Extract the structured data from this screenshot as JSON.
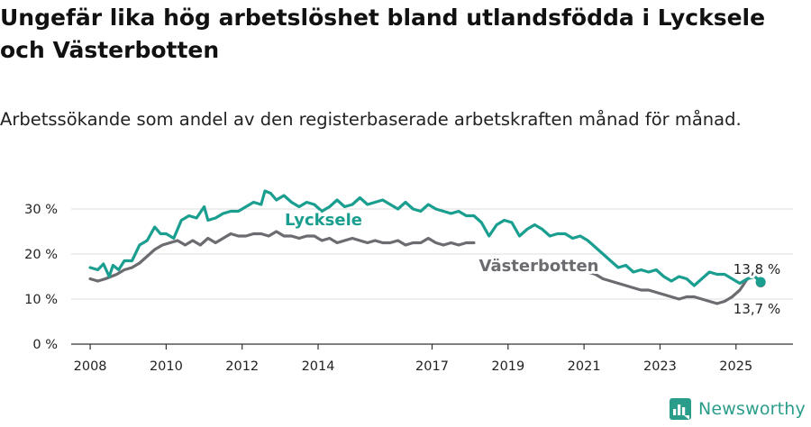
{
  "title": "Ungefär lika hög arbetslöshet bland utlandsfödda i Lycksele och Västerbotten",
  "subtitle": "Arbetssökande som andel av den registerbaserade arbetskraften månad för månad.",
  "brand": {
    "name": "Newsworthy",
    "icon": "newsworthy-logo-icon",
    "color": "#2a9d8a"
  },
  "chart_data": {
    "type": "line",
    "title": "",
    "xlabel": "",
    "ylabel": "",
    "xlim": [
      2007.5,
      2026.5
    ],
    "ylim": [
      0,
      30
    ],
    "yticks": [
      0,
      10,
      20,
      30
    ],
    "ytick_labels": [
      "0 %",
      "10 %",
      "20 %",
      "30 %"
    ],
    "xticks": [
      2008,
      2010,
      2012,
      2014,
      2017,
      2019,
      2021,
      2023,
      2025
    ],
    "xtick_labels": [
      "2008",
      "2010",
      "2012",
      "2014",
      "2017",
      "2019",
      "2021",
      "2023",
      "2025"
    ],
    "grid": "horizontal",
    "legend": "none",
    "series": [
      {
        "name": "Lycksele",
        "color": "#1a9e8f",
        "x": [
          2008.0,
          2008.2,
          2008.35,
          2008.5,
          2008.6,
          2008.75,
          2008.9,
          2009.1,
          2009.3,
          2009.5,
          2009.7,
          2009.85,
          2010.0,
          2010.2,
          2010.4,
          2010.6,
          2010.8,
          2011.0,
          2011.1,
          2011.3,
          2011.5,
          2011.7,
          2011.9,
          2012.1,
          2012.3,
          2012.5,
          2012.6,
          2012.75,
          2012.9,
          2013.1,
          2013.3,
          2013.5,
          2013.7,
          2013.9,
          2014.1,
          2014.3,
          2014.5,
          2014.7,
          2014.9,
          2015.1,
          2015.3,
          2015.5,
          2015.7,
          2015.9,
          2016.1,
          2016.3,
          2016.5,
          2016.7,
          2016.9,
          2017.1,
          2017.3,
          2017.5,
          2017.7,
          2017.9,
          2018.1,
          2018.3,
          2018.5,
          2018.7,
          2018.9,
          2019.1,
          2019.3,
          2019.5,
          2019.7,
          2019.9,
          2020.1,
          2020.3,
          2020.5,
          2020.7,
          2020.9,
          2021.1,
          2021.3,
          2021.5,
          2021.7,
          2021.9,
          2022.1,
          2022.3,
          2022.5,
          2022.7,
          2022.9,
          2023.1,
          2023.3,
          2023.5,
          2023.7,
          2023.9,
          2024.1,
          2024.3,
          2024.5,
          2024.7,
          2024.9,
          2025.1,
          2025.3,
          2025.5,
          2025.65
        ],
        "values": [
          17.0,
          16.5,
          17.8,
          15.0,
          17.5,
          16.5,
          18.5,
          18.5,
          22.0,
          23.0,
          26.0,
          24.5,
          24.5,
          23.5,
          27.5,
          28.5,
          28.0,
          30.5,
          27.5,
          28.0,
          29.0,
          29.5,
          29.5,
          30.5,
          31.5,
          31.0,
          34.0,
          33.5,
          32.0,
          33.0,
          31.5,
          30.5,
          31.5,
          31.0,
          29.5,
          30.5,
          32.0,
          30.5,
          31.0,
          32.5,
          31.0,
          31.5,
          32.0,
          31.0,
          30.0,
          31.5,
          30.0,
          29.5,
          31.0,
          30.0,
          29.5,
          29.0,
          29.5,
          28.5,
          28.5,
          27.0,
          24.0,
          26.5,
          27.5,
          27.0,
          24.0,
          25.5,
          26.5,
          25.5,
          24.0,
          24.5,
          24.5,
          23.5,
          24.0,
          23.0,
          21.5,
          20.0,
          18.5,
          17.0,
          17.5,
          16.0,
          16.5,
          16.0,
          16.5,
          15.0,
          14.0,
          15.0,
          14.5,
          13.0,
          14.5,
          16.0,
          15.5,
          15.5,
          14.5,
          13.5,
          14.5,
          15.0,
          13.8
        ],
        "end_label": "13,8 %"
      },
      {
        "name": "Västerbotten",
        "color": "#6b6b70",
        "x": [
          2008.0,
          2008.2,
          2008.4,
          2008.55,
          2008.7,
          2008.9,
          2009.1,
          2009.3,
          2009.5,
          2009.7,
          2009.9,
          2010.1,
          2010.3,
          2010.5,
          2010.7,
          2010.9,
          2011.1,
          2011.3,
          2011.5,
          2011.7,
          2011.9,
          2012.1,
          2012.3,
          2012.5,
          2012.7,
          2012.9,
          2013.1,
          2013.3,
          2013.5,
          2013.7,
          2013.9,
          2014.1,
          2014.3,
          2014.5,
          2014.7,
          2014.9,
          2015.1,
          2015.3,
          2015.5,
          2015.7,
          2015.9,
          2016.1,
          2016.3,
          2016.5,
          2016.7,
          2016.9,
          2017.1,
          2017.3,
          2017.5,
          2017.7,
          2017.9,
          2018.1,
          2020.9,
          2021.1,
          2021.3,
          2021.5,
          2021.7,
          2021.9,
          2022.1,
          2022.3,
          2022.5,
          2022.7,
          2022.9,
          2023.1,
          2023.3,
          2023.5,
          2023.7,
          2023.9,
          2024.1,
          2024.3,
          2024.5,
          2024.7,
          2024.9,
          2025.1,
          2025.3,
          2025.5,
          2025.65
        ],
        "values": [
          14.5,
          14.0,
          14.5,
          15.0,
          15.5,
          16.5,
          17.0,
          18.0,
          19.5,
          21.0,
          22.0,
          22.5,
          23.0,
          22.0,
          23.0,
          22.0,
          23.5,
          22.5,
          23.5,
          24.5,
          24.0,
          24.0,
          24.5,
          24.5,
          24.0,
          25.0,
          24.0,
          24.0,
          23.5,
          24.0,
          24.0,
          23.0,
          23.5,
          22.5,
          23.0,
          23.5,
          23.0,
          22.5,
          23.0,
          22.5,
          22.5,
          23.0,
          22.0,
          22.5,
          22.5,
          23.5,
          22.5,
          22.0,
          22.5,
          22.0,
          22.5,
          22.5,
          17.0,
          16.0,
          15.5,
          14.5,
          14.0,
          13.5,
          13.0,
          12.5,
          12.0,
          12.0,
          11.5,
          11.0,
          10.5,
          10.0,
          10.5,
          10.5,
          10.0,
          9.5,
          9.0,
          9.5,
          10.5,
          12.0,
          14.5,
          15.0,
          13.7
        ],
        "end_label": "13,7 %"
      }
    ]
  }
}
